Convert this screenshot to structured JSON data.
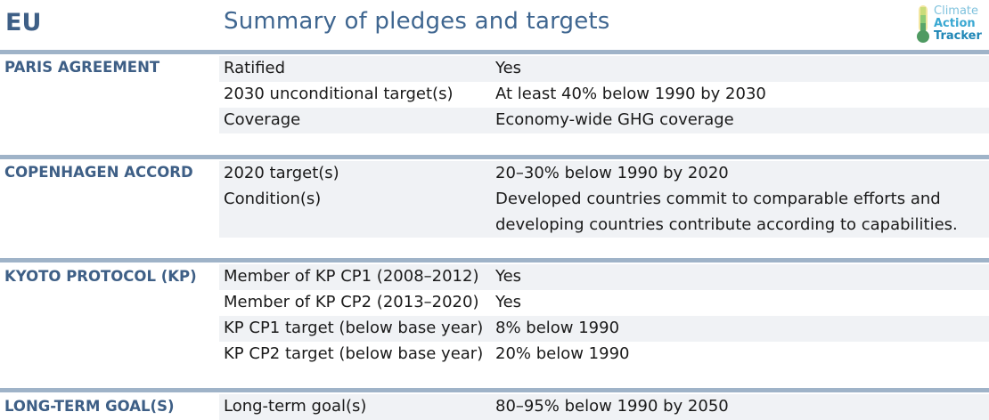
{
  "header": {
    "country": "EU",
    "title": "Summary of pledges and targets",
    "logo": {
      "line1": "Climate",
      "line2": "Action",
      "line3": "Tracker",
      "icon": "thermometer-icon"
    }
  },
  "colors": {
    "accent": "#3e5f86",
    "bar": "#9fb3c8",
    "shade": "#f0f2f5"
  },
  "sections": [
    {
      "title": "PARIS AGREEMENT",
      "rows": [
        {
          "label": "Ratified",
          "value": "Yes"
        },
        {
          "label": "2030 unconditional target(s)",
          "value": "At least 40% below 1990 by 2030"
        },
        {
          "label": "Coverage",
          "value": "Economy-wide GHG coverage"
        }
      ]
    },
    {
      "title": "COPENHAGEN ACCORD",
      "rows": [
        {
          "label": "2020 target(s)",
          "value": "20–30% below 1990 by 2020"
        },
        {
          "label": "Condition(s)",
          "value": "Developed countries commit to comparable efforts and developing countries contribute according to capabilities."
        }
      ]
    },
    {
      "title": "KYOTO PROTOCOL (KP)",
      "rows": [
        {
          "label": "Member of KP CP1 (2008–2012)",
          "value": "Yes"
        },
        {
          "label": "Member of KP CP2 (2013–2020)",
          "value": "Yes"
        },
        {
          "label": "KP CP1 target (below base year)",
          "value": "8% below 1990"
        },
        {
          "label": "KP CP2 target (below base year)",
          "value": "20% below 1990"
        }
      ]
    },
    {
      "title": "LONG-TERM GOAL(S)",
      "rows": [
        {
          "label": "Long-term goal(s)",
          "value": "80–95% below 1990 by 2050"
        }
      ]
    }
  ]
}
